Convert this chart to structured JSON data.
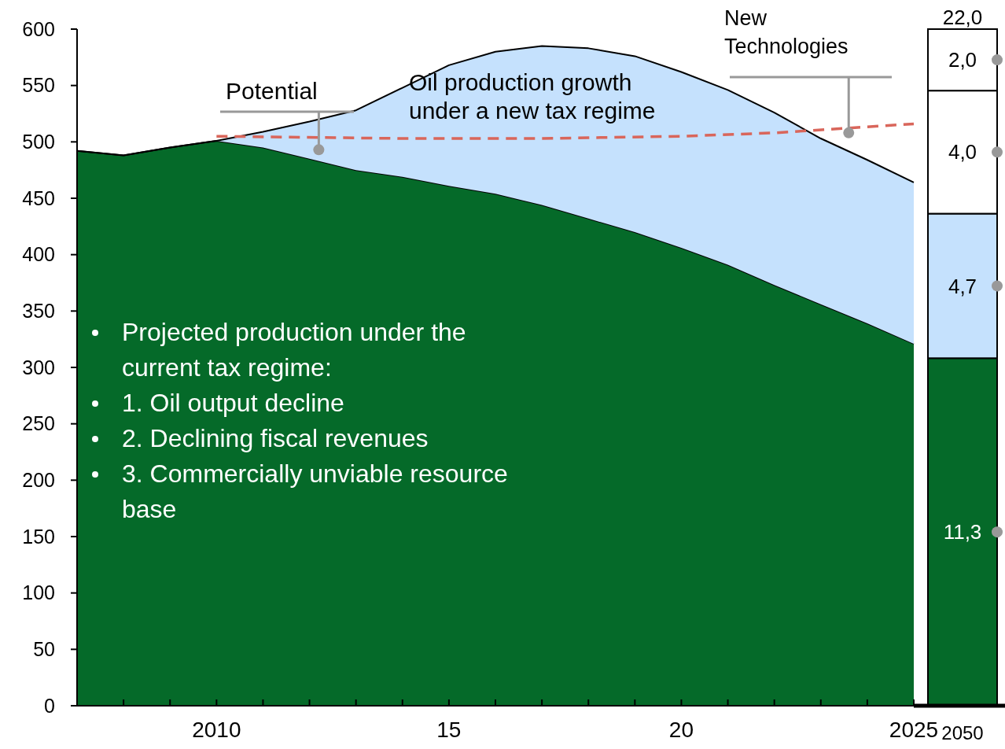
{
  "chart_data": [
    {
      "type": "area",
      "stacked": true,
      "x": [
        2007,
        2008,
        2009,
        2010,
        2011,
        2012,
        2013,
        2014,
        2015,
        2016,
        2017,
        2018,
        2019,
        2020,
        2021,
        2022,
        2023,
        2024,
        2025
      ],
      "series": [
        {
          "color": "#056a29",
          "values": [
            492,
            488,
            495,
            501,
            495,
            485,
            475,
            469,
            461,
            454,
            444,
            432,
            420,
            406,
            391,
            373,
            356,
            339,
            321
          ]
        },
        {
          "color": "#c5e1fd",
          "values": [
            0,
            0,
            0,
            0,
            14,
            33,
            53,
            79,
            107,
            126,
            141,
            151,
            156,
            156,
            155,
            153,
            147,
            145,
            143
          ]
        },
        {
          "type": "line",
          "color": "#d9665b",
          "line_style": "dashed",
          "x": [
            2010,
            2014,
            2017,
            2020,
            2022,
            2025
          ],
          "values": [
            505,
            503,
            503,
            505,
            508,
            516
          ]
        }
      ],
      "xlim": [
        2007,
        2025
      ],
      "ylim": [
        0,
        600
      ],
      "xticks": [
        {
          "value": 2008,
          "label": null
        },
        {
          "value": 2009,
          "label": null
        },
        {
          "value": 2010,
          "label": "2010"
        },
        {
          "value": 2011,
          "label": null
        },
        {
          "value": 2012,
          "label": null
        },
        {
          "value": 2013,
          "label": null
        },
        {
          "value": 2014,
          "label": null
        },
        {
          "value": 2015,
          "label": "15"
        },
        {
          "value": 2016,
          "label": null
        },
        {
          "value": 2017,
          "label": null
        },
        {
          "value": 2018,
          "label": null
        },
        {
          "value": 2019,
          "label": null
        },
        {
          "value": 2020,
          "label": "20"
        },
        {
          "value": 2021,
          "label": null
        },
        {
          "value": 2022,
          "label": null
        },
        {
          "value": 2023,
          "label": null
        },
        {
          "value": 2024,
          "label": null
        },
        {
          "value": 2025,
          "label": "2025"
        }
      ],
      "yticks": [
        0,
        50,
        100,
        150,
        200,
        250,
        300,
        350,
        400,
        450,
        500,
        550,
        600
      ],
      "annotations": [
        {
          "text": "Potential",
          "x": 2012.2,
          "y": 493
        },
        "Oil production growth under a new tax regime",
        {
          "text": "New Technologies",
          "x": 2023.6,
          "y": 508
        },
        "Projected production under the current tax regime:",
        "1. Oil output decline",
        "2. Declining fiscal revenues",
        "3. Commercially unviable resource base"
      ]
    },
    {
      "type": "bar",
      "stacked": true,
      "categories": [
        "2050"
      ],
      "ylim": [
        0,
        22
      ],
      "tick_labels": "x",
      "series": [
        {
          "color": "#056a29",
          "values": [
            11.3
          ],
          "value_labels": [
            "11,3"
          ]
        },
        {
          "color": "#c5e1fd",
          "values": [
            4.7
          ],
          "value_labels": [
            "4,7"
          ]
        },
        {
          "color": "#ffffff",
          "values": [
            4.0
          ],
          "value_labels": [
            "4,0"
          ]
        },
        {
          "color": "#ffffff",
          "values": [
            2.0
          ],
          "value_labels": [
            "2,0"
          ]
        }
      ],
      "totals": [
        "22,0"
      ]
    }
  ]
}
